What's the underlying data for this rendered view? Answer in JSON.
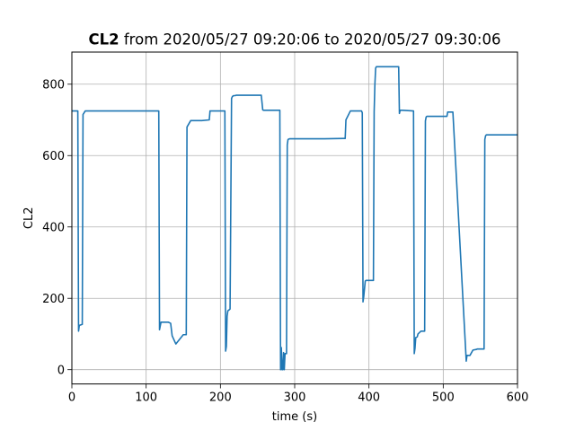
{
  "chart_data": {
    "type": "line",
    "title": {
      "bold": "CL2",
      "rest": " from 2020/05/27 09:20:06 to 2020/05/27 09:30:06"
    },
    "xlabel": "time (s)",
    "ylabel": "CL2",
    "xlim": [
      0,
      600
    ],
    "ylim": [
      -40,
      890
    ],
    "x_ticks": [
      0,
      100,
      200,
      300,
      400,
      500,
      600
    ],
    "y_ticks": [
      0,
      200,
      400,
      600,
      800
    ],
    "grid": true,
    "line_color": "#1f77b4",
    "series": [
      {
        "x": [
          0,
          8,
          9,
          10,
          14,
          15,
          18,
          60,
          115,
          117,
          118,
          120,
          130,
          133,
          135,
          140,
          150,
          151,
          153,
          154,
          155,
          160,
          175,
          185,
          186,
          206,
          207,
          208,
          209,
          210,
          212,
          213,
          215,
          216,
          217,
          218,
          219,
          220,
          221,
          223,
          255,
          257,
          258,
          280,
          281,
          282,
          283,
          284,
          285,
          286,
          287,
          288,
          289,
          290,
          291,
          293,
          300,
          340,
          368,
          369,
          375,
          390,
          391,
          392,
          393,
          395,
          396,
          406,
          407,
          408,
          409,
          410,
          412,
          415,
          440,
          441,
          442,
          443,
          445,
          460,
          461,
          462,
          463,
          465,
          466,
          470,
          475,
          476,
          477,
          478,
          480,
          500,
          505,
          506,
          512,
          513,
          531,
          532,
          533,
          534,
          535,
          536,
          540,
          545,
          546,
          555,
          556,
          557,
          558,
          560,
          600
        ],
        "y": [
          725,
          725,
          108,
          124,
          127,
          715,
          725,
          725,
          725,
          725,
          112,
          133,
          133,
          130,
          95,
          72,
          98,
          98,
          98,
          98,
          680,
          698,
          698,
          700,
          725,
          725,
          52,
          65,
          150,
          165,
          168,
          170,
          760,
          765,
          767,
          768,
          768,
          768,
          769,
          769,
          769,
          728,
          727,
          727,
          0,
          62,
          0,
          0,
          48,
          0,
          45,
          45,
          45,
          630,
          645,
          647,
          647,
          647,
          648,
          700,
          725,
          725,
          720,
          190,
          205,
          248,
          250,
          250,
          723,
          800,
          845,
          849,
          849,
          849,
          849,
          718,
          727,
          727,
          727,
          725,
          45,
          60,
          90,
          92,
          100,
          108,
          108,
          697,
          708,
          710,
          710,
          710,
          710,
          722,
          722,
          722,
          24,
          40,
          40,
          40,
          40,
          40,
          55,
          57,
          58,
          58,
          645,
          655,
          658,
          658,
          658
        ]
      }
    ]
  }
}
